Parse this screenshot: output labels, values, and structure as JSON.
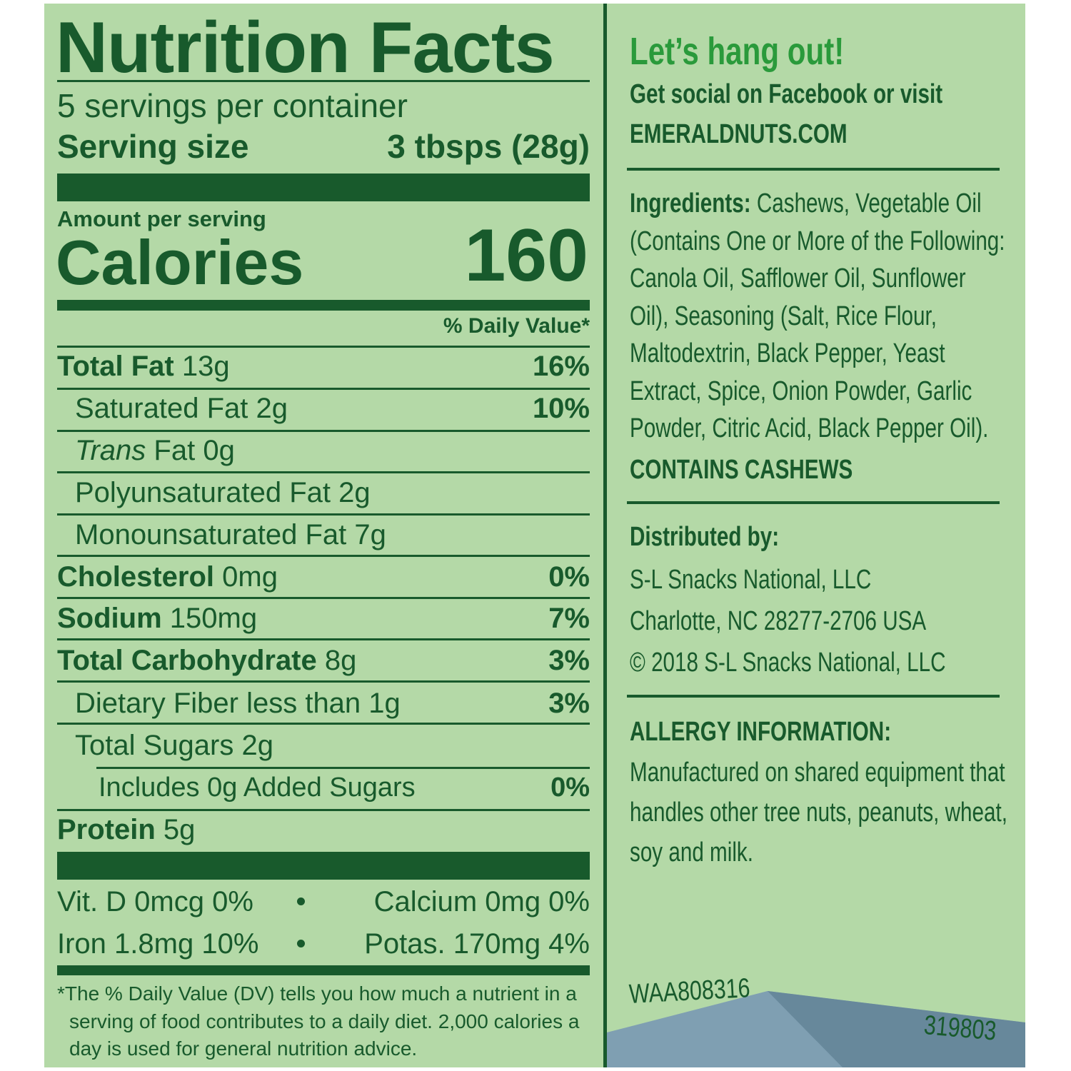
{
  "nutrition_facts": {
    "title": "Nutrition Facts",
    "servings": "5 servings per container",
    "serving_size": {
      "label": "Serving size",
      "value": "3 tbsps (28g)"
    },
    "amount_per_serving": "Amount per serving",
    "calories": {
      "label": "Calories",
      "value": 160
    },
    "daily_value_header": "% Daily Value*",
    "rows": [
      {
        "name": "Total Fat",
        "amount": "13g",
        "dv": "16%"
      },
      {
        "name": "Saturated Fat",
        "amount": "2g",
        "dv": "10%"
      },
      {
        "name_italic": "Trans",
        "name": "Fat",
        "amount": "0g"
      },
      {
        "name": "Polyunsaturated Fat",
        "amount": "2g"
      },
      {
        "name": "Monounsaturated Fat",
        "amount": "7g"
      },
      {
        "name": "Cholesterol",
        "amount": "0mg",
        "dv": "0%"
      },
      {
        "name": "Sodium",
        "amount": "150mg",
        "dv": "7%"
      },
      {
        "name": "Total Carbohydrate",
        "amount": "8g",
        "dv": "3%"
      },
      {
        "name": "Dietary Fiber",
        "amount": "less than 1g",
        "dv": "3%"
      },
      {
        "name": "Total Sugars",
        "amount": "2g"
      },
      {
        "name": "Includes 0g Added Sugars",
        "dv": "0%"
      },
      {
        "name": "Protein",
        "amount": "5g"
      }
    ],
    "vitamins": [
      "Vit. D 0mcg 0%",
      "Calcium 0mg 0%",
      "Iron 1.8mg 10%",
      "Potas. 170mg 4%"
    ],
    "footnote": "*The % Daily Value (DV) tells you how much a nutrient in a serving of food contributes to a daily diet. 2,000 calories a day is used for general nutrition advice."
  },
  "side_panel": {
    "headline": "Let’s hang out!",
    "social": "Get social on Facebook or visit",
    "website": "EMERALDNUTS.COM",
    "ingredients": {
      "label": "Ingredients:",
      "text": "Cashews, Vegetable Oil (Contains One or More of the Following: Canola Oil, Safflower Oil, Sunflower Oil), Seasoning (Salt, Rice Flour, Maltodextrin, Black Pepper, Yeast Extract, Spice, Onion Powder, Garlic Powder, Citric Acid, Black Pepper Oil)."
    },
    "contains": "CONTAINS CASHEWS",
    "distributed_by": {
      "label": "Distributed by:",
      "lines": [
        "S-L Snacks National, LLC",
        "Charlotte, NC 28277-2706 USA",
        "© 2018 S-L Snacks National, LLC"
      ]
    },
    "allergy": {
      "label": "ALLERGY INFORMATION:",
      "text": "Manufactured on shared equipment that handles other tree nuts, peanuts, wheat, soy and milk."
    },
    "code_1": "WAA808316",
    "code_2": "319803"
  }
}
